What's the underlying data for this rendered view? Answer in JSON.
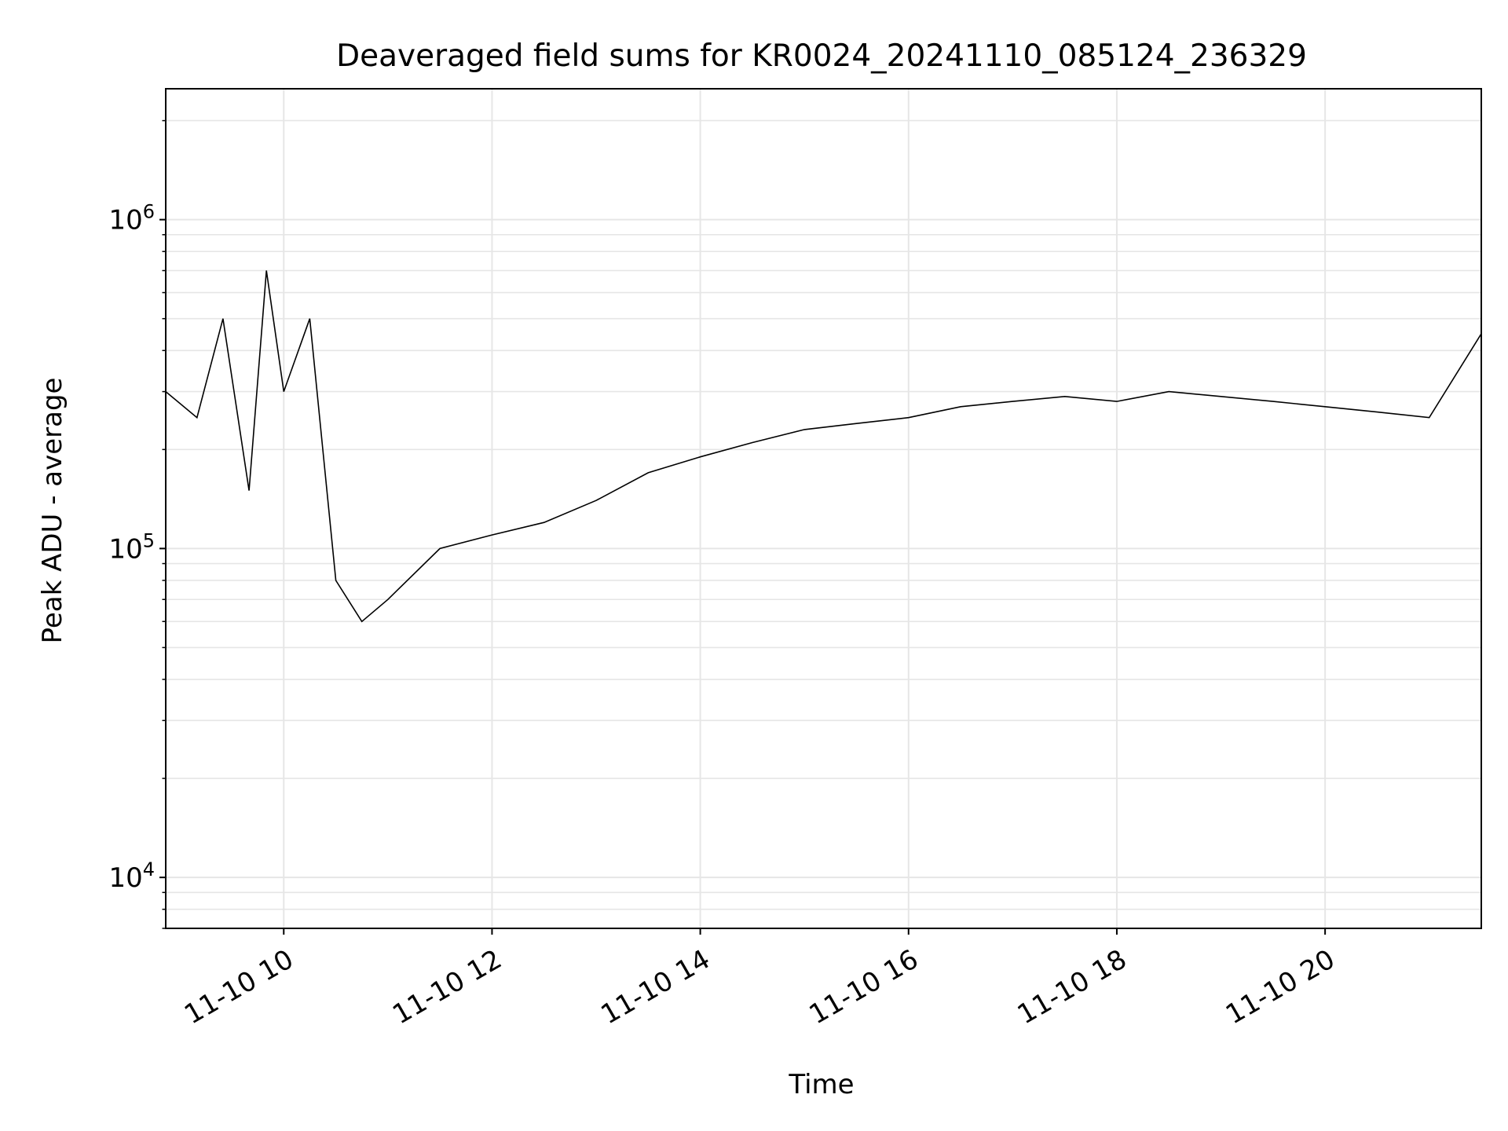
{
  "chart_data": {
    "type": "line",
    "title": "Deaveraged field sums for KR0024_20241110_085124_236329",
    "xlabel": "Time",
    "ylabel": "Peak ADU - average",
    "yscale": "log",
    "xlim": [
      "2024-11-10T08:52",
      "2024-11-10T21:30"
    ],
    "ylim": [
      7000,
      2500000
    ],
    "grid": true,
    "series_color": "#000000",
    "x_ticks": [
      {
        "value": "2024-11-10T10:00",
        "label": "11-10 10"
      },
      {
        "value": "2024-11-10T12:00",
        "label": "11-10 12"
      },
      {
        "value": "2024-11-10T14:00",
        "label": "11-10 14"
      },
      {
        "value": "2024-11-10T16:00",
        "label": "11-10 16"
      },
      {
        "value": "2024-11-10T18:00",
        "label": "11-10 18"
      },
      {
        "value": "2024-11-10T20:00",
        "label": "11-10 20"
      }
    ],
    "y_ticks": [
      {
        "value": 10000,
        "base": "10",
        "exp": "4"
      },
      {
        "value": 100000,
        "base": "10",
        "exp": "5"
      },
      {
        "value": 1000000,
        "base": "10",
        "exp": "6"
      }
    ],
    "series": [
      {
        "x": [
          "2024-11-10T08:52",
          "2024-11-10T09:10",
          "2024-11-10T09:25",
          "2024-11-10T09:40",
          "2024-11-10T09:50",
          "2024-11-10T10:00",
          "2024-11-10T10:15",
          "2024-11-10T10:30",
          "2024-11-10T10:45",
          "2024-11-10T11:00",
          "2024-11-10T11:30",
          "2024-11-10T12:00",
          "2024-11-10T12:30",
          "2024-11-10T13:00",
          "2024-11-10T13:30",
          "2024-11-10T14:00",
          "2024-11-10T14:30",
          "2024-11-10T15:00",
          "2024-11-10T15:30",
          "2024-11-10T16:00",
          "2024-11-10T16:30",
          "2024-11-10T17:00",
          "2024-11-10T17:30",
          "2024-11-10T18:00",
          "2024-11-10T18:30",
          "2024-11-10T19:00",
          "2024-11-10T19:30",
          "2024-11-10T20:00",
          "2024-11-10T20:30",
          "2024-11-10T21:00",
          "2024-11-10T21:30"
        ],
        "y": [
          300000,
          250000,
          500000,
          150000,
          700000,
          300000,
          500000,
          80000,
          60000,
          70000,
          100000,
          110000,
          120000,
          140000,
          170000,
          190000,
          210000,
          230000,
          240000,
          250000,
          270000,
          280000,
          290000,
          280000,
          300000,
          290000,
          280000,
          270000,
          260000,
          250000,
          450000
        ]
      }
    ]
  }
}
